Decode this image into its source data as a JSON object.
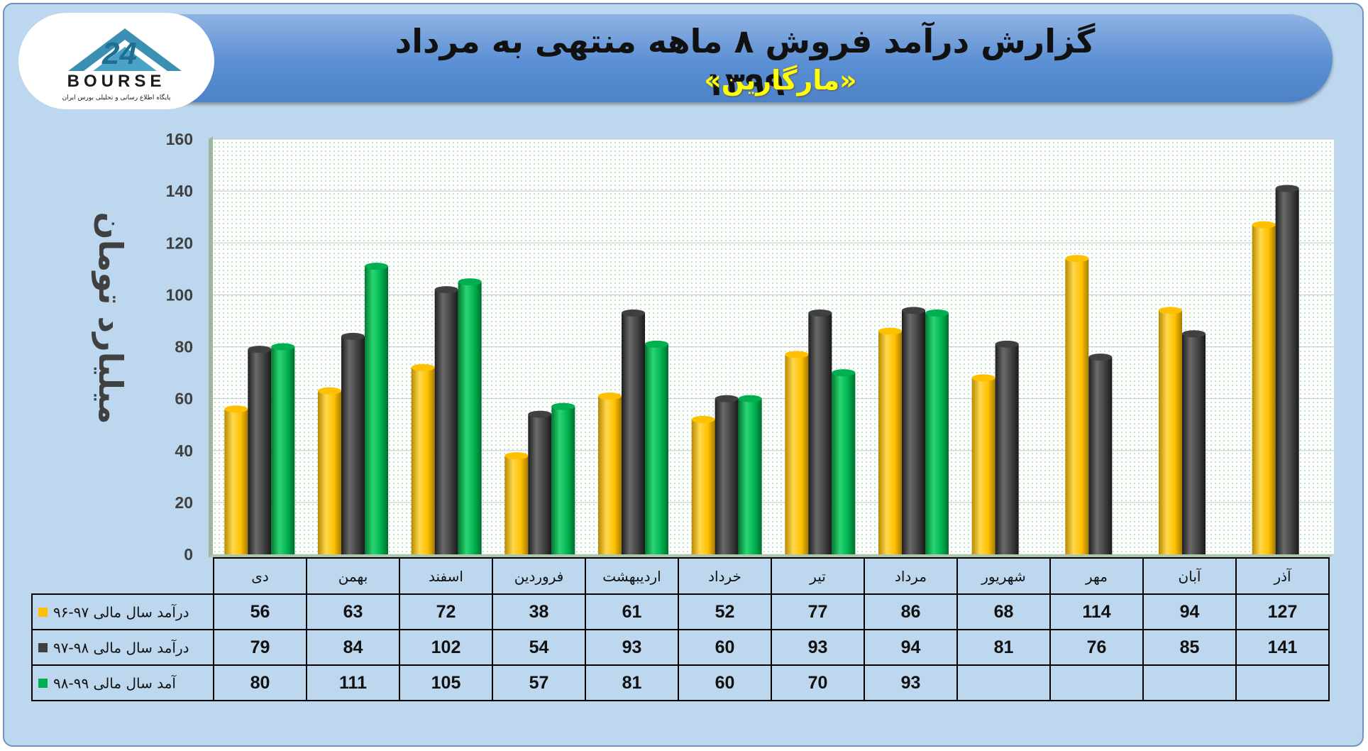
{
  "header": {
    "title": "گزارش درآمد فروش ۸ ماهه منتهی به مرداد ۱۳۹۹",
    "subtitle": "«مارگارین»"
  },
  "logo": {
    "brand": "BOURSE",
    "number": "24",
    "tagline": "پایگاه اطلاع رسانی و تحلیلی بورس ایران"
  },
  "colors": {
    "series1": "#ffc000",
    "series2": "#404040",
    "series3": "#00b050",
    "background": "#bdd7ee",
    "banner": "#5b8fd3"
  },
  "chart_data": {
    "type": "bar",
    "ylabel": "میلیارد تومان",
    "ylim": [
      0,
      160
    ],
    "yticks": [
      0,
      20,
      40,
      60,
      80,
      100,
      120,
      140,
      160
    ],
    "categories": [
      "دی",
      "بهمن",
      "اسفند",
      "فروردین",
      "اردیبهشت",
      "خرداد",
      "تیر",
      "مرداد",
      "شهریور",
      "مهر",
      "آبان",
      "آذر"
    ],
    "series": [
      {
        "name": "درآمد سال مالی ۹۷-۹۶",
        "color": "#ffc000",
        "values": [
          56,
          63,
          72,
          38,
          61,
          52,
          77,
          86,
          68,
          114,
          94,
          127
        ]
      },
      {
        "name": "درآمد سال مالی ۹۸-۹۷",
        "color": "#404040",
        "values": [
          79,
          84,
          102,
          54,
          93,
          60,
          93,
          94,
          81,
          76,
          85,
          141
        ]
      },
      {
        "name": "آمد سال مالی ۹۹-۹۸",
        "color": "#00b050",
        "values": [
          80,
          111,
          105,
          57,
          81,
          60,
          70,
          93,
          null,
          null,
          null,
          null
        ]
      }
    ],
    "grid": true,
    "legend": "data-table-below"
  }
}
